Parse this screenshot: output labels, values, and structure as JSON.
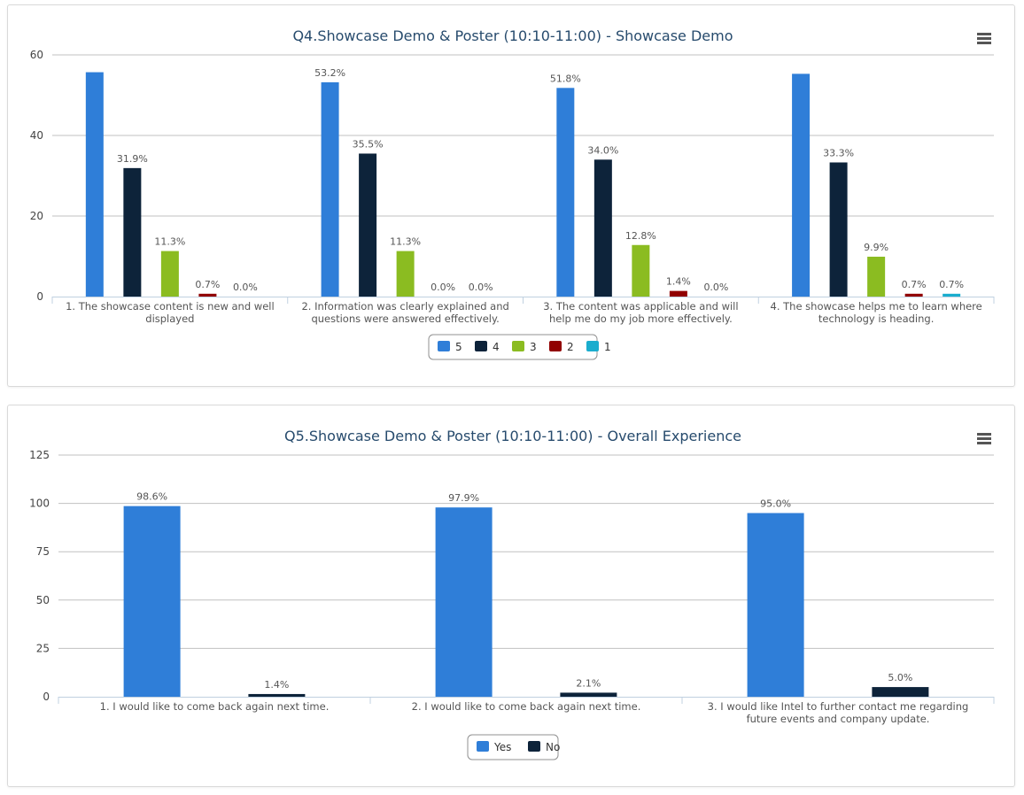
{
  "chart_data": [
    {
      "type": "bar",
      "title": "Q4.Showcase Demo & Poster (10:10-11:00) - Showcase Demo",
      "ylim": [
        0,
        60
      ],
      "yticks": [
        0,
        20,
        40,
        60
      ],
      "grid": true,
      "legend_position": "bottom-center",
      "categories": [
        [
          "1. The showcase content is new and well",
          "displayed"
        ],
        [
          "2. Information was clearly explained and",
          "questions were answered effectively."
        ],
        [
          "3. The content was applicable and will",
          "help me do my job more effectively."
        ],
        [
          "4. The showcase helps me to learn where",
          "technology is heading."
        ]
      ],
      "series": [
        {
          "name": "5",
          "color": "#2f7ed8",
          "values": [
            55.7,
            53.2,
            51.8,
            55.3
          ],
          "labels": [
            "",
            "53.2%",
            "51.8%",
            ""
          ]
        },
        {
          "name": "4",
          "color": "#0d233a",
          "values": [
            31.9,
            35.5,
            34.0,
            33.3
          ],
          "labels": [
            "31.9%",
            "35.5%",
            "34.0%",
            "33.3%"
          ]
        },
        {
          "name": "3",
          "color": "#8bbc21",
          "values": [
            11.3,
            11.3,
            12.8,
            9.9
          ],
          "labels": [
            "11.3%",
            "11.3%",
            "12.8%",
            "9.9%"
          ]
        },
        {
          "name": "2",
          "color": "#910000",
          "values": [
            0.7,
            0.0,
            1.4,
            0.7
          ],
          "labels": [
            "0.7%",
            "0.0%",
            "1.4%",
            "0.7%"
          ]
        },
        {
          "name": "1",
          "color": "#1aadce",
          "values": [
            0.0,
            0.0,
            0.0,
            0.7
          ],
          "labels": [
            "0.0%",
            "0.0%",
            "0.0%",
            "0.7%"
          ]
        }
      ]
    },
    {
      "type": "bar",
      "title": "Q5.Showcase Demo & Poster (10:10-11:00) - Overall Experience",
      "ylim": [
        0,
        125
      ],
      "yticks": [
        0,
        25,
        50,
        75,
        100,
        125
      ],
      "grid": true,
      "legend_position": "bottom-center",
      "categories": [
        [
          "1. I would like to come back again next time."
        ],
        [
          "2. I would like to come back again next time."
        ],
        [
          "3. I would like Intel to further contact me regarding",
          "future events and company update."
        ]
      ],
      "series": [
        {
          "name": "Yes",
          "color": "#2f7ed8",
          "values": [
            98.6,
            97.9,
            95.0
          ],
          "labels": [
            "98.6%",
            "97.9%",
            "95.0%"
          ]
        },
        {
          "name": "No",
          "color": "#0d233a",
          "values": [
            1.4,
            2.1,
            5.0
          ],
          "labels": [
            "1.4%",
            "2.1%",
            "5.0%"
          ]
        }
      ]
    }
  ],
  "ui": {
    "menu_icon": "hamburger-menu-icon"
  }
}
